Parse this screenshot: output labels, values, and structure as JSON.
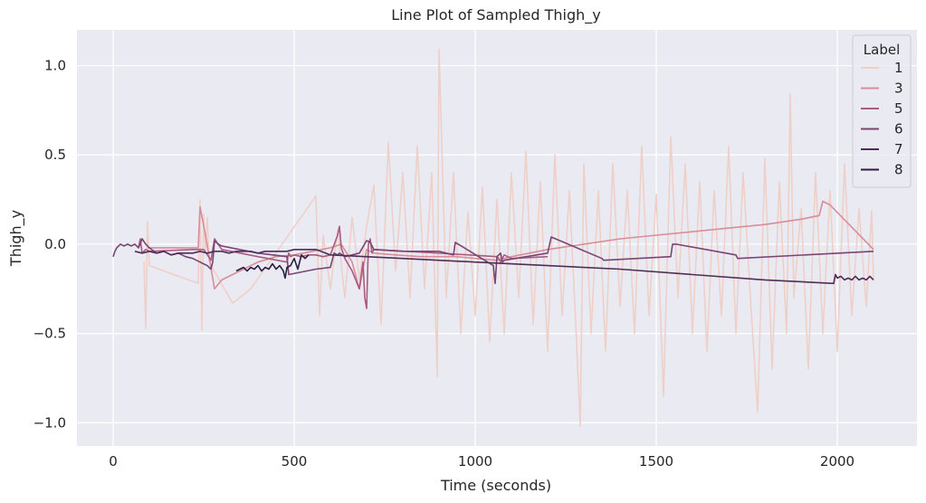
{
  "chart_data": {
    "type": "line",
    "title": "Line Plot of Sampled Thigh_y",
    "xlabel": "Time (seconds)",
    "ylabel": "Thigh_y",
    "xlim": [
      -100,
      2220
    ],
    "ylim": [
      -1.13,
      1.2
    ],
    "x_ticks": [
      0,
      500,
      1000,
      1500,
      2000
    ],
    "x_tick_labels": [
      "0",
      "500",
      "1000",
      "1500",
      "2000"
    ],
    "y_ticks": [
      -1.0,
      -0.5,
      0.0,
      0.5,
      1.0
    ],
    "y_tick_labels": [
      "−1.0",
      "−0.5",
      "0.0",
      "0.5",
      "1.0"
    ],
    "grid": true,
    "background": "#eaeaf2",
    "legend": {
      "title": "Label",
      "placement": "top-right"
    },
    "series": [
      {
        "name": "1",
        "color": "#efd0c9",
        "x": [
          85,
          90,
          95,
          100,
          235,
          240,
          245,
          250,
          255,
          260,
          265,
          330,
          380,
          560,
          570,
          580,
          600,
          620,
          640,
          660,
          680,
          700,
          720,
          740,
          760,
          780,
          800,
          820,
          840,
          860,
          880,
          895,
          900,
          920,
          940,
          960,
          980,
          1000,
          1020,
          1040,
          1060,
          1080,
          1100,
          1120,
          1140,
          1160,
          1180,
          1200,
          1220,
          1240,
          1260,
          1280,
          1290,
          1300,
          1320,
          1340,
          1360,
          1380,
          1400,
          1420,
          1440,
          1460,
          1480,
          1500,
          1520,
          1540,
          1560,
          1580,
          1600,
          1620,
          1640,
          1660,
          1680,
          1700,
          1720,
          1740,
          1760,
          1780,
          1800,
          1820,
          1840,
          1860,
          1870,
          1880,
          1900,
          1920,
          1940,
          1960,
          1980,
          2000,
          2020,
          2040,
          2060,
          2080,
          2095,
          2100
        ],
        "y": [
          -0.1,
          -0.47,
          0.13,
          -0.12,
          -0.22,
          0.25,
          -0.48,
          0.17,
          -0.05,
          0.15,
          -0.1,
          -0.33,
          -0.25,
          0.27,
          -0.4,
          0.05,
          -0.25,
          0.08,
          -0.3,
          0.15,
          -0.2,
          0.1,
          0.33,
          -0.45,
          0.57,
          -0.15,
          0.4,
          -0.3,
          0.55,
          -0.25,
          0.4,
          -0.74,
          1.09,
          -0.3,
          0.4,
          -0.5,
          0.18,
          -0.4,
          0.32,
          -0.55,
          0.25,
          -0.5,
          0.4,
          -0.3,
          0.52,
          -0.45,
          0.35,
          -0.6,
          0.5,
          -0.4,
          0.3,
          -0.55,
          -1.02,
          0.45,
          -0.5,
          0.3,
          -0.6,
          0.45,
          -0.35,
          0.3,
          -0.5,
          0.55,
          -0.4,
          0.28,
          -0.85,
          0.6,
          -0.3,
          0.45,
          -0.5,
          0.35,
          -0.6,
          0.3,
          -0.4,
          0.55,
          -0.5,
          0.4,
          -0.3,
          -0.94,
          0.48,
          -0.7,
          0.35,
          -0.5,
          0.84,
          -0.3,
          0.2,
          -0.7,
          0.4,
          -0.5,
          0.3,
          -0.6,
          0.45,
          -0.4,
          0.2,
          -0.35,
          0.19,
          -0.2
        ]
      },
      {
        "name": "3",
        "color": "#d88d99",
        "x": [
          95,
          235,
          240,
          255,
          280,
          300,
          350,
          400,
          450,
          500,
          550,
          600,
          630,
          660,
          680,
          700,
          720,
          780,
          850,
          900,
          950,
          1000,
          1060,
          1080,
          1100,
          1200,
          1300,
          1400,
          1500,
          1600,
          1700,
          1800,
          1900,
          1950,
          1960,
          1980,
          2100
        ],
        "y": [
          -0.02,
          -0.02,
          0.21,
          0.05,
          -0.25,
          -0.2,
          -0.15,
          -0.1,
          -0.07,
          -0.06,
          -0.04,
          -0.02,
          0.0,
          -0.1,
          -0.25,
          -0.03,
          -0.05,
          -0.06,
          -0.07,
          -0.07,
          -0.07,
          -0.08,
          -0.09,
          -0.08,
          -0.07,
          -0.03,
          0.0,
          0.03,
          0.05,
          0.07,
          0.09,
          0.11,
          0.14,
          0.16,
          0.24,
          0.22,
          -0.03
        ]
      },
      {
        "name": "5",
        "color": "#aa5c80",
        "x": [
          70,
          75,
          80,
          90,
          100,
          220,
          250,
          270,
          280,
          290,
          300,
          400,
          480,
          485,
          490,
          500,
          520,
          540,
          560,
          580,
          600,
          620,
          625,
          630,
          640,
          660,
          680,
          690,
          695,
          700,
          705,
          710,
          715,
          720,
          900,
          1060,
          1065,
          1070,
          1080,
          1100,
          1200
        ],
        "y": [
          -0.02,
          0.03,
          -0.05,
          -0.03,
          -0.04,
          -0.03,
          -0.03,
          -0.09,
          0.03,
          0.0,
          -0.03,
          -0.07,
          -0.1,
          -0.05,
          -0.07,
          -0.06,
          -0.07,
          -0.06,
          -0.06,
          -0.07,
          -0.06,
          0.05,
          0.1,
          -0.02,
          -0.08,
          -0.15,
          -0.25,
          -0.1,
          -0.3,
          -0.36,
          0.0,
          0.03,
          -0.05,
          -0.03,
          -0.05,
          -0.07,
          -0.08,
          -0.1,
          -0.06,
          -0.08,
          -0.07
        ]
      },
      {
        "name": "6",
        "color": "#7a4474",
        "x": [
          0,
          5,
          10,
          20,
          30,
          40,
          50,
          60,
          70,
          80,
          90,
          100,
          120,
          140,
          160,
          180,
          200,
          220,
          240,
          260,
          270,
          275,
          280,
          290,
          300,
          400,
          480,
          485,
          560,
          600,
          610,
          620,
          625,
          640,
          680,
          700,
          710,
          720,
          800,
          900,
          940,
          945,
          1050,
          1055,
          1060,
          1070,
          1075,
          1080,
          1200,
          1210,
          1350,
          1355,
          1540,
          1545,
          1555,
          1720,
          1725,
          2100
        ],
        "y": [
          -0.07,
          -0.04,
          -0.02,
          0.0,
          -0.01,
          0.0,
          -0.01,
          0.0,
          -0.02,
          0.03,
          0.0,
          -0.02,
          -0.05,
          -0.04,
          -0.06,
          -0.05,
          -0.07,
          -0.08,
          -0.1,
          -0.12,
          -0.14,
          -0.1,
          0.02,
          0.0,
          -0.01,
          -0.05,
          -0.07,
          -0.17,
          -0.14,
          -0.13,
          -0.05,
          -0.06,
          -0.05,
          -0.07,
          -0.05,
          0.02,
          0.01,
          -0.03,
          -0.04,
          -0.04,
          -0.06,
          0.01,
          -0.12,
          -0.22,
          -0.07,
          -0.05,
          -0.1,
          -0.09,
          -0.05,
          0.04,
          -0.08,
          -0.09,
          -0.07,
          0.0,
          0.0,
          -0.06,
          -0.08,
          -0.04
        ]
      },
      {
        "name": "7",
        "color": "#4e2d57",
        "x": [
          60,
          80,
          100,
          120,
          140,
          160,
          180,
          200,
          220,
          240,
          260,
          280,
          300,
          320,
          340,
          360,
          380,
          400,
          420,
          440,
          460,
          480,
          500,
          520,
          540,
          560,
          600,
          800,
          1000,
          1200,
          1400,
          1600,
          1800,
          1990,
          1995,
          2000,
          2010,
          2020,
          2030,
          2040,
          2050,
          2060,
          2070,
          2080,
          2090,
          2100
        ],
        "y": [
          -0.04,
          -0.05,
          -0.04,
          -0.05,
          -0.04,
          -0.06,
          -0.05,
          -0.05,
          -0.05,
          -0.04,
          -0.05,
          -0.04,
          -0.04,
          -0.05,
          -0.04,
          -0.04,
          -0.04,
          -0.05,
          -0.04,
          -0.04,
          -0.04,
          -0.04,
          -0.03,
          -0.03,
          -0.03,
          -0.03,
          -0.06,
          -0.08,
          -0.1,
          -0.12,
          -0.14,
          -0.17,
          -0.2,
          -0.22,
          -0.17,
          -0.19,
          -0.18,
          -0.2,
          -0.19,
          -0.2,
          -0.18,
          -0.2,
          -0.19,
          -0.2,
          -0.18,
          -0.2
        ]
      },
      {
        "name": "8",
        "color": "#2d1e3e",
        "x": [
          340,
          350,
          360,
          370,
          380,
          390,
          400,
          410,
          420,
          430,
          440,
          450,
          460,
          470,
          475,
          480,
          490,
          500,
          510,
          520,
          530,
          540
        ],
        "y": [
          -0.15,
          -0.14,
          -0.13,
          -0.15,
          -0.13,
          -0.14,
          -0.12,
          -0.15,
          -0.13,
          -0.14,
          -0.11,
          -0.14,
          -0.12,
          -0.15,
          -0.19,
          -0.13,
          -0.12,
          -0.08,
          -0.14,
          -0.06,
          -0.08,
          -0.06
        ]
      }
    ]
  }
}
